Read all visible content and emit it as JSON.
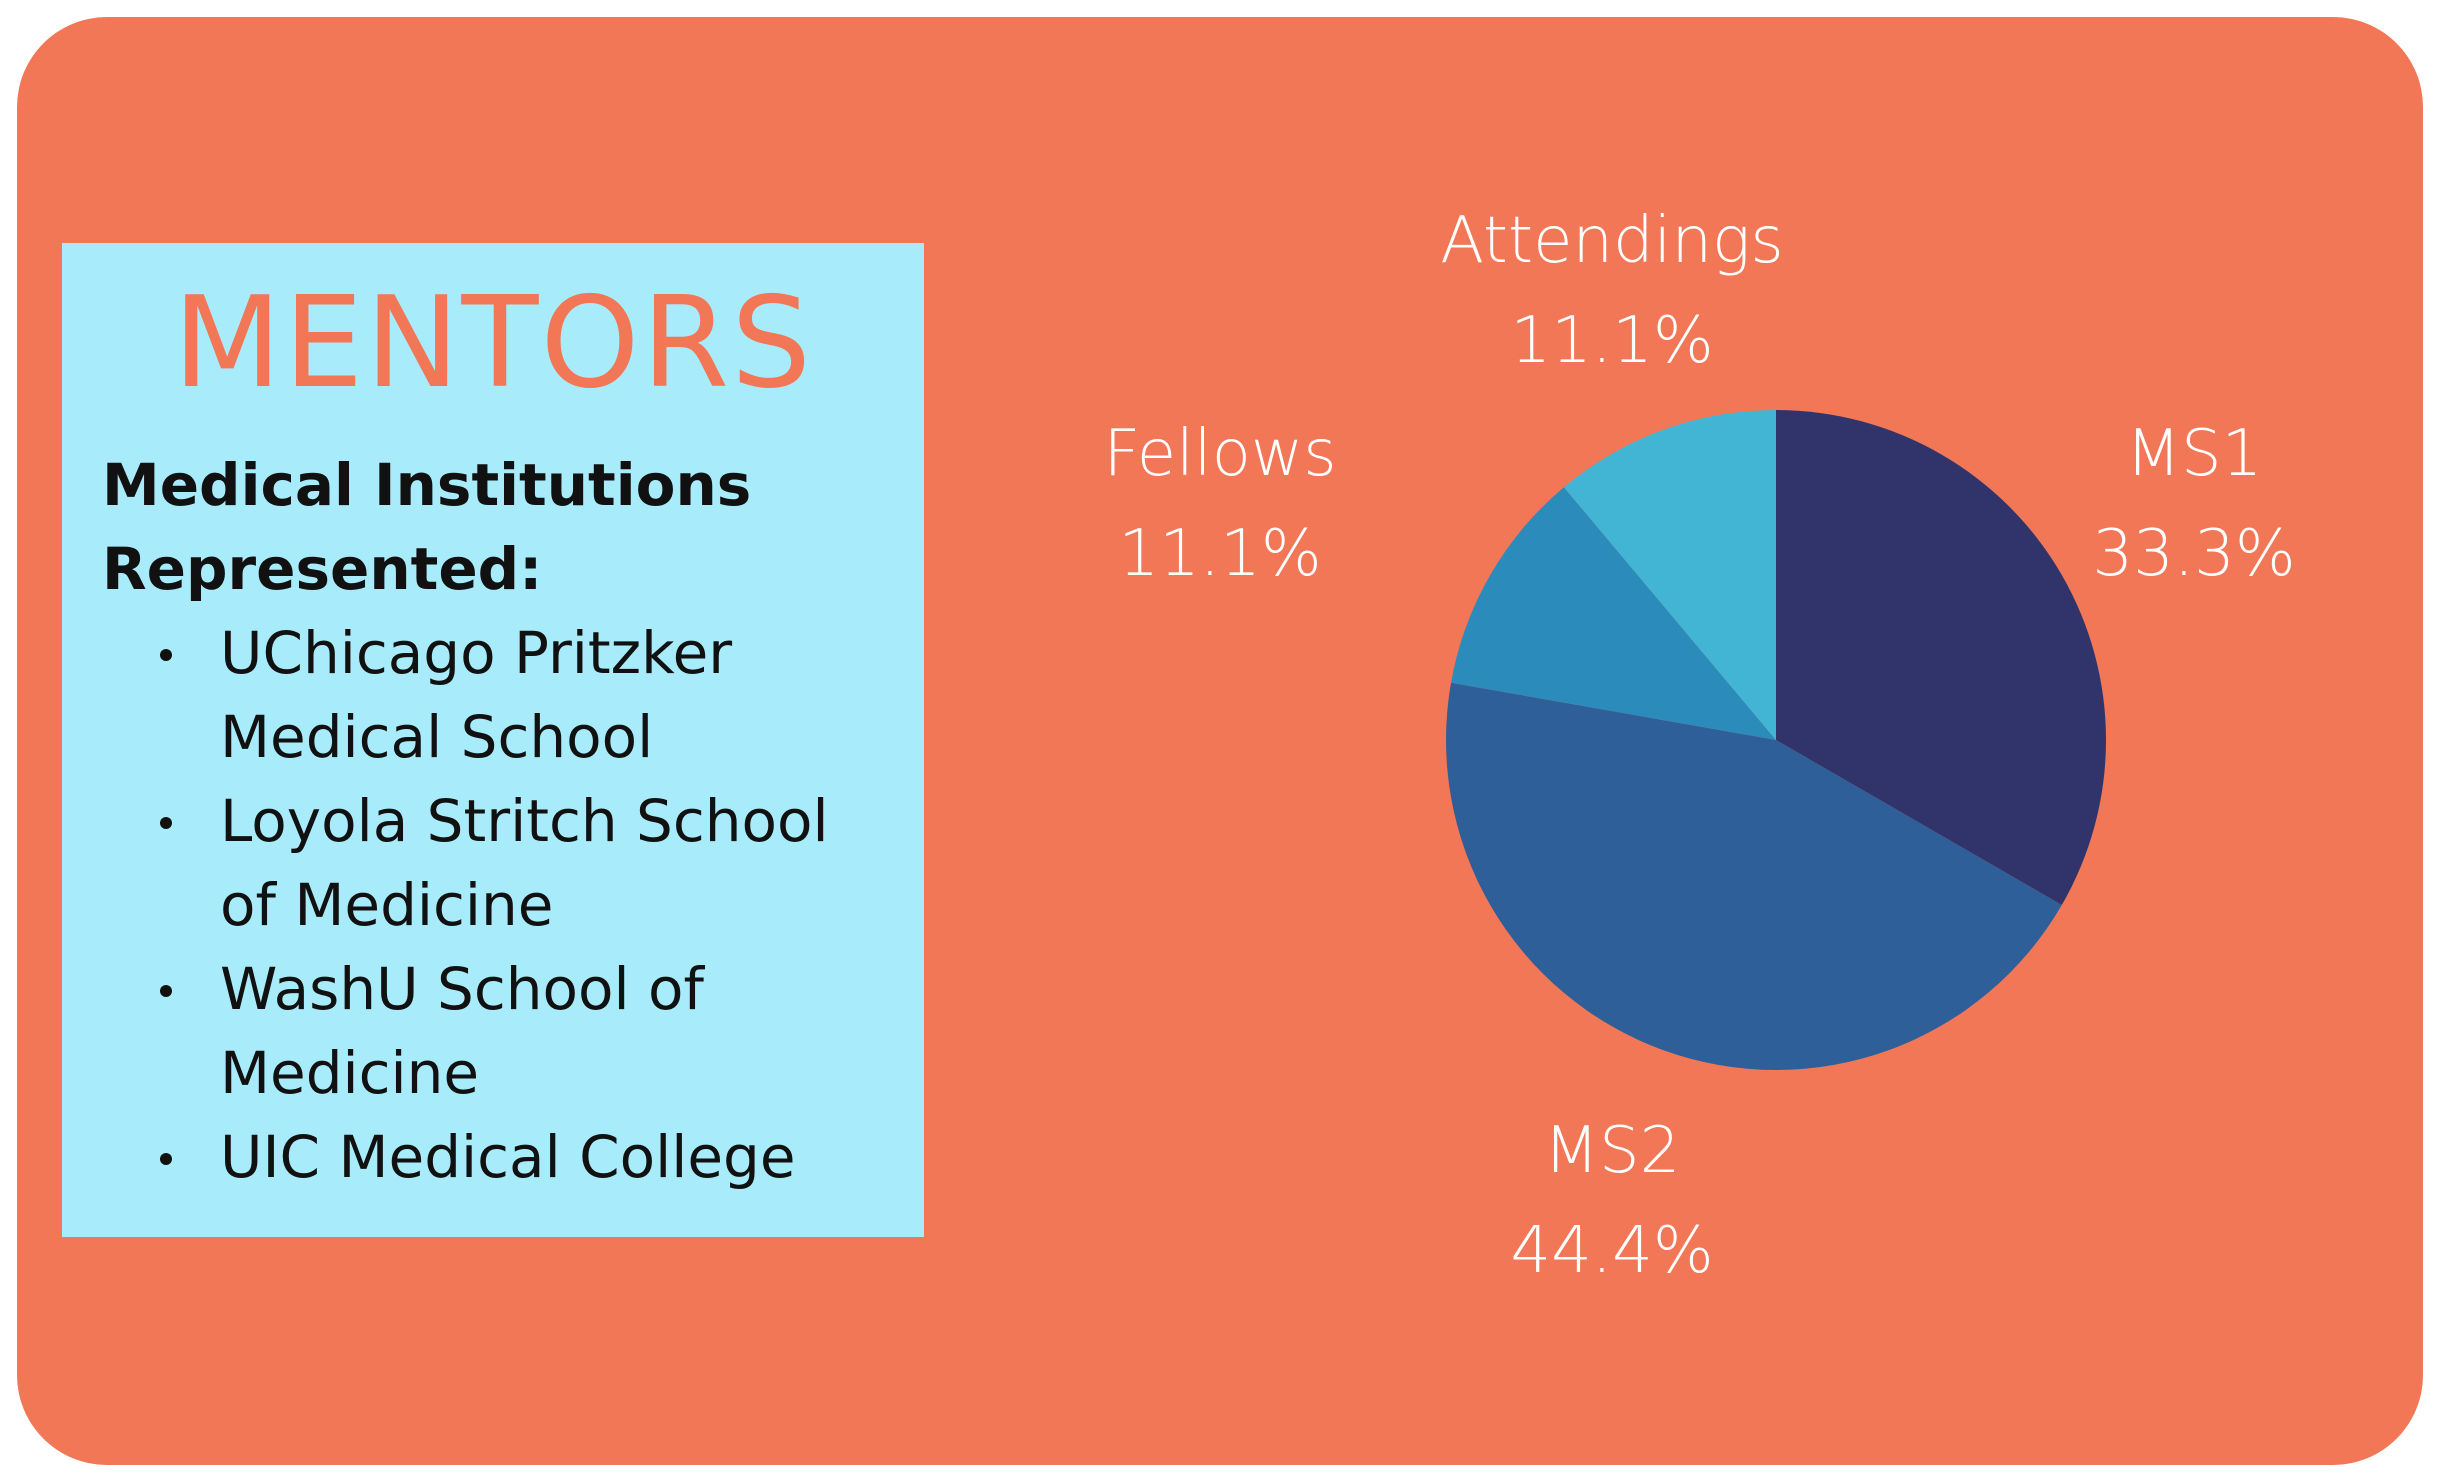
{
  "colors": {
    "background": "#f27757",
    "info_box": "#a8ecfb",
    "title": "#f27757",
    "text": "#111111",
    "label": "#ffffff"
  },
  "panel": {
    "title": "MENTORS",
    "heading_line1": "Medical Institutions",
    "heading_line2": "Represented:",
    "institutions": [
      {
        "line1": "UChicago Pritzker",
        "line2": "Medical School"
      },
      {
        "line1": "Loyola Stritch School",
        "line2": "of Medicine"
      },
      {
        "line1": "WashU School of",
        "line2": "Medicine"
      },
      {
        "line1": "UIC Medical College",
        "line2": ""
      }
    ]
  },
  "chart_data": {
    "type": "pie",
    "title": "",
    "legend": "none",
    "slices": [
      {
        "label": "MS1",
        "value": 33.3,
        "value_label": "33.3%",
        "color": "#31346b"
      },
      {
        "label": "MS2",
        "value": 44.4,
        "value_label": "44.4%",
        "color": "#2e5f98"
      },
      {
        "label": "Fellows",
        "value": 11.1,
        "value_label": "11.1%",
        "color": "#2b8cbb"
      },
      {
        "label": "Attendings",
        "value": 11.1,
        "value_label": "11.1%",
        "color": "#42b5d5"
      }
    ]
  }
}
